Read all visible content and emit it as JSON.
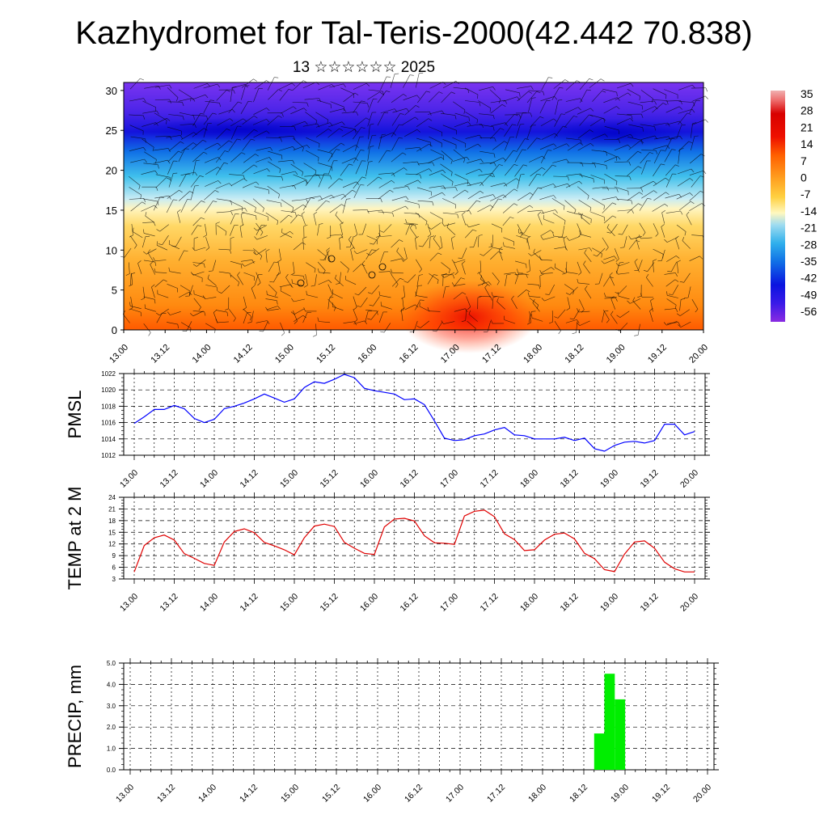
{
  "header": {
    "title": "Kazhydromet for Tal-Teris-2000(42.442 70.838)",
    "subtitle": "13 ☆☆☆☆☆☆ 2025"
  },
  "time_labels": [
    "13.00",
    "13.12",
    "14.00",
    "14.12",
    "15.00",
    "15.12",
    "16.00",
    "16.12",
    "17.00",
    "17.12",
    "18.00",
    "18.12",
    "19.00",
    "19.12",
    "20.00"
  ],
  "colors": {
    "pmsl_line": "#0000ff",
    "temp_line": "#e00000",
    "precip_bar": "#00ee00"
  },
  "chart_data": [
    {
      "type": "heatmap",
      "title": "",
      "ylabel": "",
      "x": [
        "13.00",
        "13.12",
        "14.00",
        "14.12",
        "15.00",
        "15.12",
        "16.00",
        "16.12",
        "17.00",
        "17.12",
        "18.00",
        "18.12",
        "19.00",
        "19.12",
        "20.00"
      ],
      "ylim": [
        0,
        31
      ],
      "yticks": [
        0,
        5,
        10,
        15,
        20,
        25,
        30
      ],
      "colorbar": {
        "labels": [
          "35",
          "28",
          "21",
          "14",
          "7",
          "0",
          "-7",
          "-14",
          "-21",
          "-28",
          "-35",
          "-42",
          "-49",
          "-56"
        ],
        "range": [
          -63,
          38
        ]
      }
    },
    {
      "type": "line",
      "ylabel": "PMSL",
      "ylim": [
        1012,
        1022
      ],
      "yticks": [
        "1012",
        "1014",
        "1016",
        "1018",
        "1020",
        "1022"
      ],
      "x": [
        0,
        3,
        6,
        9,
        12,
        15,
        18,
        21,
        24,
        27,
        30,
        33,
        36,
        39,
        42,
        45,
        48,
        51,
        54,
        57,
        60,
        63,
        66,
        69,
        72,
        75,
        78,
        81,
        84,
        87,
        90,
        93,
        96,
        99,
        102,
        105,
        108,
        111,
        114,
        117,
        120,
        123,
        126,
        129,
        132,
        135,
        138,
        141,
        144,
        147,
        150,
        153,
        156,
        159,
        162,
        165,
        168
      ],
      "series": [
        {
          "values": [
            1015.9,
            1016.7,
            1017.6,
            1017.6,
            1018.1,
            1017.7,
            1016.5,
            1016.0,
            1016.4,
            1017.7,
            1018.0,
            1018.4,
            1018.9,
            1019.5,
            1019.0,
            1018.5,
            1018.9,
            1020.3,
            1021.0,
            1020.8,
            1021.3,
            1021.9,
            1021.5,
            1020.2,
            1019.9,
            1019.7,
            1019.5,
            1018.8,
            1018.9,
            1018.2,
            1016.2,
            1014.1,
            1013.8,
            1013.9,
            1014.4,
            1014.6,
            1015.1,
            1015.4,
            1014.5,
            1014.4,
            1014.0,
            1014.0,
            1014.0,
            1014.2,
            1013.8,
            1014.1,
            1012.8,
            1012.5,
            1013.2,
            1013.6,
            1013.7,
            1013.5,
            1013.8,
            1015.8,
            1015.8,
            1014.5,
            1014.9
          ]
        }
      ]
    },
    {
      "type": "line",
      "ylabel": "TEMP at 2 M",
      "ylim": [
        3,
        24
      ],
      "yticks": [
        "3",
        "6",
        "9",
        "12",
        "15",
        "18",
        "21",
        "24"
      ],
      "x": [
        0,
        3,
        6,
        9,
        12,
        15,
        18,
        21,
        24,
        27,
        30,
        33,
        36,
        39,
        42,
        45,
        48,
        51,
        54,
        57,
        60,
        63,
        66,
        69,
        72,
        75,
        78,
        81,
        84,
        87,
        90,
        93,
        96,
        99,
        102,
        105,
        108,
        111,
        114,
        117,
        120,
        123,
        126,
        129,
        132,
        135,
        138,
        141,
        144,
        147,
        150,
        153,
        156,
        159,
        162,
        165,
        168
      ],
      "series": [
        {
          "values": [
            4.8,
            11.6,
            13.6,
            14.3,
            13.0,
            9.5,
            8.3,
            7.0,
            6.5,
            12.5,
            15.2,
            15.9,
            14.9,
            12.4,
            11.5,
            10.5,
            9.2,
            13.6,
            16.6,
            17.1,
            16.5,
            12.4,
            10.9,
            9.6,
            9.3,
            16.4,
            18.4,
            18.6,
            17.9,
            14.1,
            12.3,
            12.2,
            11.9,
            19.2,
            20.4,
            20.7,
            19.0,
            14.6,
            13.1,
            10.3,
            10.5,
            13.0,
            14.5,
            14.8,
            13.3,
            9.6,
            8.2,
            5.4,
            4.9,
            9.4,
            12.5,
            12.8,
            10.9,
            7.3,
            5.6,
            4.8,
            4.8
          ]
        }
      ]
    },
    {
      "type": "bar",
      "ylabel": "PRECIP, mm",
      "ylim": [
        0,
        5
      ],
      "yticks": [
        "0.0",
        "1.0",
        "2.0",
        "3.0",
        "4.0",
        "5.0"
      ],
      "x": [
        135,
        138,
        141
      ],
      "series": [
        {
          "values": [
            1.7,
            4.5,
            3.3
          ]
        }
      ]
    }
  ]
}
